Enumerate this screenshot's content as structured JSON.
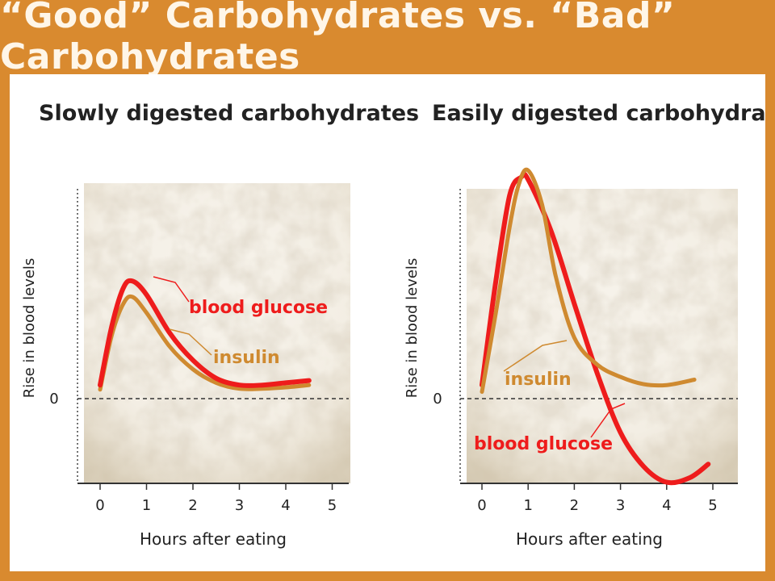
{
  "banner": {
    "title": "“Good” Carbohydrates  vs. “Bad” Carbohydrates"
  },
  "colors": {
    "frame": "#d98a2f",
    "glucose": "#ee1c1c",
    "insulin": "#cf8a30",
    "axis": "#333333",
    "texture": "#cbbfa8"
  },
  "chart_data": [
    {
      "type": "line",
      "title": "Slowly digested carbohydrates",
      "xlabel": "Hours after eating",
      "ylabel": "Rise in blood levels",
      "xlim": [
        0,
        5
      ],
      "ylim": [
        -1.8,
        4.5
      ],
      "x_ticks": [
        "0",
        "1",
        "2",
        "3",
        "4",
        "5"
      ],
      "y_ticks": [
        "0"
      ],
      "baseline_dashed_at": 0,
      "series": [
        {
          "name": "blood glucose",
          "color": "#ee1c1c",
          "x": [
            0,
            0.25,
            0.5,
            0.7,
            1.0,
            1.5,
            2.0,
            2.5,
            3.0,
            3.5,
            4.0,
            4.5
          ],
          "y": [
            0.3,
            1.6,
            2.45,
            2.6,
            2.3,
            1.45,
            0.85,
            0.45,
            0.3,
            0.3,
            0.35,
            0.4
          ]
        },
        {
          "name": "insulin",
          "color": "#cf8a30",
          "x": [
            0,
            0.25,
            0.5,
            0.7,
            1.0,
            1.5,
            2.0,
            2.5,
            3.0,
            3.5,
            4.0,
            4.5
          ],
          "y": [
            0.2,
            1.4,
            2.1,
            2.25,
            1.9,
            1.15,
            0.65,
            0.35,
            0.22,
            0.22,
            0.25,
            0.3
          ]
        }
      ]
    },
    {
      "type": "line",
      "title": "Easily digested carbohydrates",
      "xlabel": "Hours after eating",
      "ylabel": "Rise in blood levels",
      "xlim": [
        0,
        5
      ],
      "ylim": [
        -1.8,
        4.5
      ],
      "x_ticks": [
        "0",
        "1",
        "2",
        "3",
        "4",
        "5"
      ],
      "y_ticks": [
        "0"
      ],
      "baseline_dashed_at": 0,
      "series": [
        {
          "name": "blood glucose",
          "color": "#ee1c1c",
          "x": [
            0,
            0.3,
            0.6,
            0.85,
            1.0,
            1.5,
            2.0,
            2.5,
            3.0,
            3.5,
            4.0,
            4.5,
            4.9
          ],
          "y": [
            0.3,
            2.6,
            4.5,
            4.9,
            4.85,
            3.7,
            2.1,
            0.55,
            -0.75,
            -1.5,
            -1.85,
            -1.75,
            -1.45
          ]
        },
        {
          "name": "insulin",
          "color": "#cf8a30",
          "x": [
            0,
            0.3,
            0.6,
            0.8,
            1.0,
            1.3,
            1.6,
            2.0,
            2.5,
            3.0,
            3.5,
            4.0,
            4.6
          ],
          "y": [
            0.15,
            1.9,
            3.8,
            4.75,
            5.05,
            4.3,
            2.7,
            1.35,
            0.75,
            0.48,
            0.32,
            0.3,
            0.42
          ]
        }
      ]
    }
  ],
  "series_labels": {
    "left_glucose": "blood glucose",
    "left_insulin": "insulin",
    "right_insulin": "insulin",
    "right_glucose": "blood glucose"
  }
}
